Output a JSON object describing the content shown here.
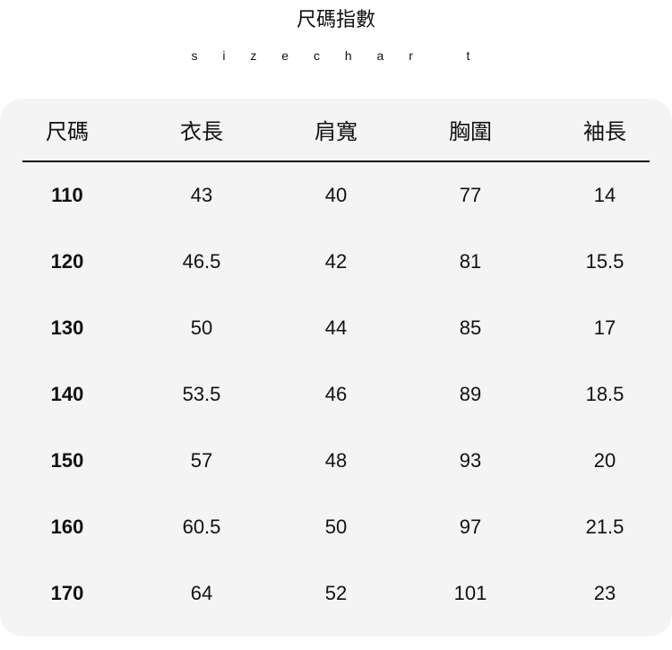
{
  "title": "尺碼指數",
  "subtitle": "s i z e c h a r   t",
  "table": {
    "headers": [
      "尺碼",
      "衣長",
      "肩寬",
      "胸圍",
      "袖長"
    ],
    "rows": [
      [
        "110",
        "43",
        "40",
        "77",
        "14"
      ],
      [
        "120",
        "46.5",
        "42",
        "81",
        "15.5"
      ],
      [
        "130",
        "50",
        "44",
        "85",
        "17"
      ],
      [
        "140",
        "53.5",
        "46",
        "89",
        "18.5"
      ],
      [
        "150",
        "57",
        "48",
        "93",
        "20"
      ],
      [
        "160",
        "60.5",
        "50",
        "97",
        "21.5"
      ],
      [
        "170",
        "64",
        "52",
        "101",
        "23"
      ]
    ]
  }
}
